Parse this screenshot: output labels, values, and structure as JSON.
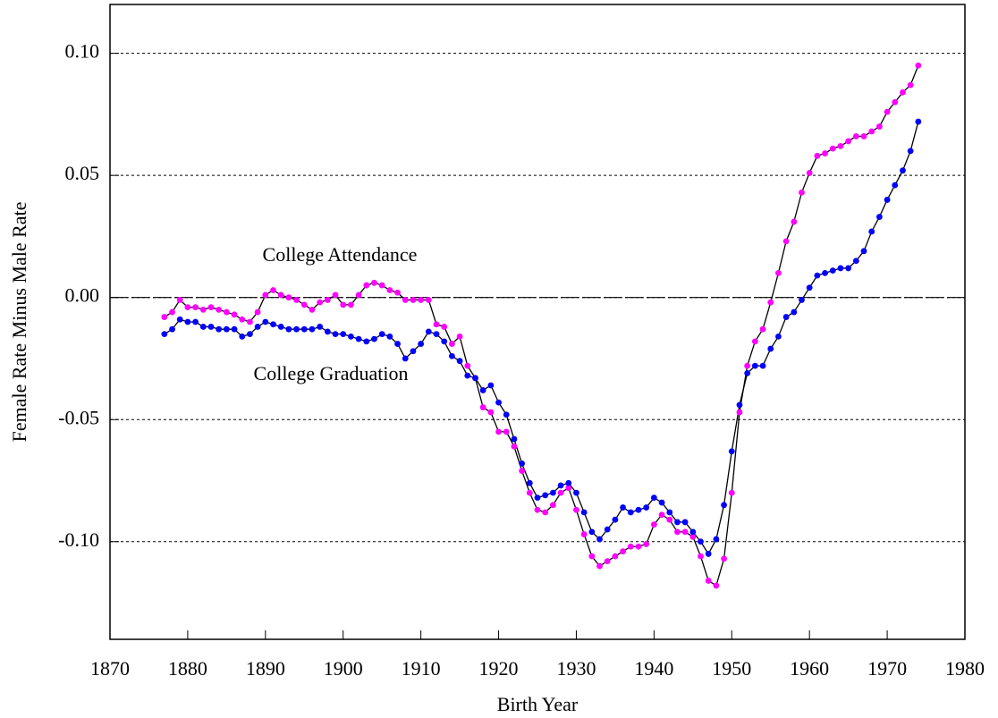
{
  "chart_data": {
    "type": "line",
    "xlabel": "Birth Year",
    "ylabel": "Female Rate Minus Male Rate",
    "annotations": [
      "College Attendance",
      "College Graduation"
    ],
    "line_color": "#000000",
    "x": [
      1877,
      1878,
      1879,
      1880,
      1881,
      1882,
      1883,
      1884,
      1885,
      1886,
      1887,
      1888,
      1889,
      1890,
      1891,
      1892,
      1893,
      1894,
      1895,
      1896,
      1897,
      1898,
      1899,
      1900,
      1901,
      1902,
      1903,
      1904,
      1905,
      1906,
      1907,
      1908,
      1909,
      1910,
      1911,
      1912,
      1913,
      1914,
      1915,
      1916,
      1917,
      1918,
      1919,
      1920,
      1921,
      1922,
      1923,
      1924,
      1925,
      1926,
      1927,
      1928,
      1929,
      1930,
      1931,
      1932,
      1933,
      1934,
      1935,
      1936,
      1937,
      1938,
      1939,
      1940,
      1941,
      1942,
      1943,
      1944,
      1945,
      1946,
      1947,
      1948,
      1949,
      1950,
      1951,
      1952,
      1953,
      1954,
      1955,
      1956,
      1957,
      1958,
      1959,
      1960,
      1961,
      1962,
      1963,
      1964,
      1965,
      1966,
      1967,
      1968,
      1969,
      1970,
      1971,
      1972,
      1973,
      1974
    ],
    "series": [
      {
        "name": "College Attendance",
        "color": "#ff00ff",
        "values": [
          -0.008,
          -0.006,
          -0.001,
          -0.004,
          -0.004,
          -0.005,
          -0.004,
          -0.005,
          -0.006,
          -0.007,
          -0.009,
          -0.01,
          -0.006,
          0.001,
          0.003,
          0.001,
          0.0,
          -0.001,
          -0.003,
          -0.005,
          -0.002,
          -0.001,
          0.001,
          -0.003,
          -0.003,
          0.001,
          0.005,
          0.006,
          0.005,
          0.003,
          0.002,
          -0.001,
          -0.001,
          -0.001,
          -0.001,
          -0.011,
          -0.012,
          -0.019,
          -0.016,
          -0.028,
          -0.033,
          -0.045,
          -0.047,
          -0.055,
          -0.055,
          -0.061,
          -0.071,
          -0.08,
          -0.087,
          -0.088,
          -0.085,
          -0.08,
          -0.078,
          -0.087,
          -0.097,
          -0.106,
          -0.11,
          -0.108,
          -0.106,
          -0.104,
          -0.102,
          -0.102,
          -0.101,
          -0.093,
          -0.089,
          -0.091,
          -0.096,
          -0.096,
          -0.098,
          -0.106,
          -0.116,
          -0.118,
          -0.107,
          -0.08,
          -0.047,
          -0.028,
          -0.018,
          -0.013,
          -0.002,
          0.01,
          0.023,
          0.031,
          0.043,
          0.051,
          0.058,
          0.059,
          0.061,
          0.062,
          0.064,
          0.066,
          0.066,
          0.068,
          0.07,
          0.076,
          0.08,
          0.084,
          0.087,
          0.095
        ]
      },
      {
        "name": "College Graduation",
        "color": "#0000ff",
        "values": [
          -0.015,
          -0.013,
          -0.009,
          -0.01,
          -0.01,
          -0.012,
          -0.012,
          -0.013,
          -0.013,
          -0.013,
          -0.016,
          -0.015,
          -0.012,
          -0.01,
          -0.011,
          -0.012,
          -0.013,
          -0.013,
          -0.013,
          -0.013,
          -0.012,
          -0.014,
          -0.015,
          -0.015,
          -0.016,
          -0.017,
          -0.018,
          -0.017,
          -0.015,
          -0.016,
          -0.019,
          -0.025,
          -0.022,
          -0.019,
          -0.014,
          -0.015,
          -0.018,
          -0.024,
          -0.026,
          -0.032,
          -0.033,
          -0.038,
          -0.036,
          -0.043,
          -0.048,
          -0.058,
          -0.068,
          -0.076,
          -0.082,
          -0.081,
          -0.08,
          -0.077,
          -0.076,
          -0.08,
          -0.088,
          -0.096,
          -0.099,
          -0.095,
          -0.091,
          -0.086,
          -0.088,
          -0.087,
          -0.086,
          -0.082,
          -0.084,
          -0.088,
          -0.092,
          -0.092,
          -0.096,
          -0.1,
          -0.105,
          -0.099,
          -0.085,
          -0.063,
          -0.044,
          -0.031,
          -0.028,
          -0.028,
          -0.021,
          -0.016,
          -0.008,
          -0.006,
          -0.001,
          0.004,
          0.009,
          0.01,
          0.011,
          0.012,
          0.012,
          0.015,
          0.019,
          0.027,
          0.033,
          0.04,
          0.046,
          0.052,
          0.06,
          0.072
        ]
      }
    ],
    "xlim": [
      1870,
      1980
    ],
    "xticks": [
      1870,
      1880,
      1890,
      1900,
      1910,
      1920,
      1930,
      1940,
      1950,
      1960,
      1970,
      1980
    ],
    "ylim": [
      -0.14,
      0.12
    ],
    "yticks": [
      {
        "value": -0.1,
        "label": "-0.10"
      },
      {
        "value": -0.05,
        "label": "-0.05"
      },
      {
        "value": 0,
        "label": "0.00"
      },
      {
        "value": 0.05,
        "label": "0.05"
      },
      {
        "value": 0.1,
        "label": "0.10"
      }
    ],
    "grid": true
  }
}
